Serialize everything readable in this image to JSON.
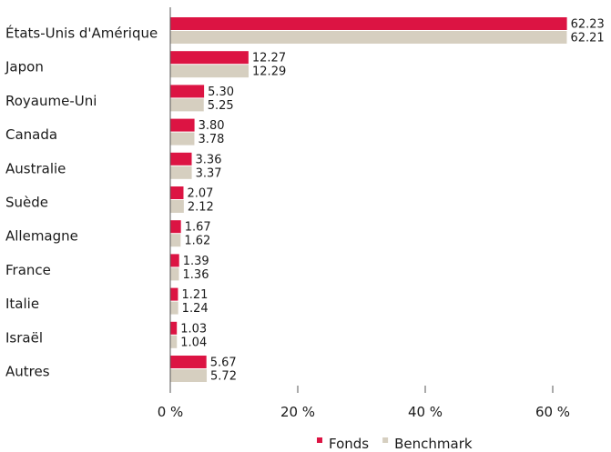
{
  "chart_data": {
    "type": "bar",
    "orientation": "horizontal",
    "categories": [
      "États-Unis d'Amérique",
      "Japon",
      "Royaume-Uni",
      "Canada",
      "Australie",
      "Suède",
      "Allemagne",
      "France",
      "Italie",
      "Israël",
      "Autres"
    ],
    "series": [
      {
        "name": "Fonds",
        "color": "#dc1443",
        "values": [
          62.23,
          12.27,
          5.3,
          3.8,
          3.36,
          2.07,
          1.67,
          1.39,
          1.21,
          1.03,
          5.67
        ]
      },
      {
        "name": "Benchmark",
        "color": "#d6cfc0",
        "values": [
          62.21,
          12.29,
          5.25,
          3.78,
          3.37,
          2.12,
          1.62,
          1.36,
          1.24,
          1.04,
          5.72
        ]
      }
    ],
    "xlim": [
      0,
      70
    ],
    "xticks": [
      {
        "value": 0,
        "label": "0 %"
      },
      {
        "value": 20,
        "label": "20 %"
      },
      {
        "value": 40,
        "label": "40 %"
      },
      {
        "value": 60,
        "label": "60 %"
      }
    ],
    "grid": false,
    "legend_position": "bottom-center",
    "value_labels": true
  }
}
